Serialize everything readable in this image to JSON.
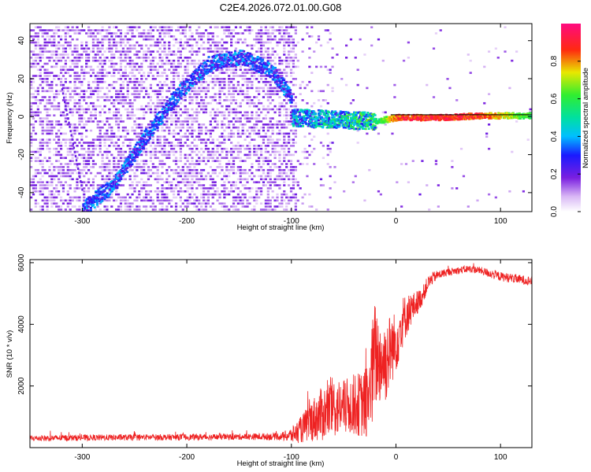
{
  "title": "C2E4.2026.072.01.00.G08",
  "colors": {
    "snr_line": "#ee2222",
    "axis": "#000000"
  },
  "chart_data": [
    {
      "type": "heatmap",
      "xlabel": "Height of straight line (km)",
      "ylabel": "Frequency (Hz)",
      "xlim": [
        -350,
        130
      ],
      "ylim": [
        -50,
        49
      ],
      "x_ticks": [
        -300,
        -200,
        -100,
        0,
        100
      ],
      "y_ticks": [
        -40,
        -20,
        0,
        20,
        40
      ],
      "colormap": "white-violet-blue-cyan-green-yellow-red-magenta",
      "colorbar": {
        "label": "Normalized spectral amplitude",
        "range": [
          0.0,
          1.0
        ],
        "ticks": [
          0.0,
          0.2,
          0.4,
          0.6,
          0.8
        ]
      },
      "features": [
        {
          "desc": "diagonal ridge",
          "x": [
            -300,
            -270,
            -240,
            -210,
            -180,
            -150,
            -120,
            -100
          ],
          "y": [
            -48,
            -35,
            -10,
            12,
            28,
            32,
            25,
            10
          ],
          "amplitude": 0.3
        },
        {
          "desc": "secondary streak",
          "x": [
            -320,
            -300
          ],
          "y": [
            15,
            -40
          ],
          "amplitude": 0.2
        },
        {
          "desc": "central tone",
          "x": [
            -100,
            -20,
            0,
            40,
            80,
            130
          ],
          "y": [
            0,
            -2,
            0,
            0,
            1,
            1
          ],
          "amplitude": [
            0.4,
            0.55,
            0.9,
            0.95,
            0.9,
            0.6
          ]
        }
      ]
    },
    {
      "type": "line",
      "xlabel": "Height of straight line (km)",
      "ylabel": "SNR (10 * v/v)",
      "xlim": [
        -350,
        130
      ],
      "ylim": [
        0,
        6100
      ],
      "x_ticks": [
        -300,
        -200,
        -100,
        0,
        100
      ],
      "y_ticks": [
        2000,
        4000,
        6000
      ],
      "series": [
        {
          "x": [
            -350,
            -300,
            -250,
            -200,
            -150,
            -110,
            -100,
            -90,
            -80,
            -70,
            -60,
            -50,
            -40,
            -30,
            -25,
            -20,
            -15,
            -10,
            -5,
            0,
            5,
            10,
            15,
            20,
            25,
            30,
            35,
            40,
            50,
            60,
            70,
            80,
            90,
            100,
            110,
            120,
            130
          ],
          "y": [
            300,
            320,
            330,
            340,
            350,
            360,
            400,
            600,
            900,
            1100,
            1300,
            1300,
            1400,
            1400,
            1800,
            3000,
            2800,
            2800,
            3200,
            3400,
            4000,
            4300,
            4500,
            4700,
            4900,
            5300,
            5500,
            5600,
            5700,
            5750,
            5800,
            5750,
            5650,
            5550,
            5500,
            5450,
            5400
          ],
          "noise": [
            100,
            100,
            100,
            100,
            100,
            120,
            250,
            450,
            700,
            900,
            1000,
            900,
            1000,
            1100,
            1800,
            1800,
            1400,
            1400,
            1200,
            1000,
            900,
            700,
            500,
            400,
            300,
            250,
            200,
            150,
            120,
            120,
            120,
            120,
            150,
            150,
            150,
            150,
            150
          ]
        }
      ]
    }
  ]
}
